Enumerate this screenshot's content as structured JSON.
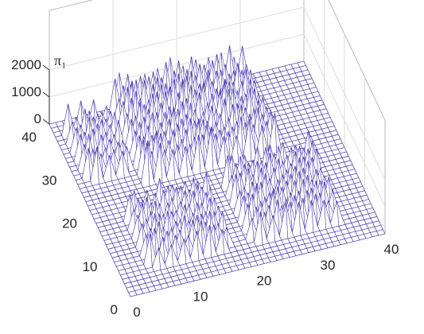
{
  "chart_data": {
    "type": "surface",
    "title": "",
    "zlabel": "π₁",
    "x_ticks": [
      "0",
      "10",
      "20",
      "30",
      "40"
    ],
    "y_ticks": [
      "0",
      "10",
      "20",
      "30",
      "40"
    ],
    "z_ticks": [
      "0",
      "1000",
      "2000"
    ],
    "xlim": [
      0,
      40
    ],
    "ylim": [
      0,
      40
    ],
    "zlim": [
      0,
      2000
    ],
    "grid": true,
    "mesh_color": "#3a2fa8",
    "peak_color": "#f5e84a",
    "face_color": "#ffffff",
    "regions": [
      {
        "x": [
          2,
          8
        ],
        "y": [
          26,
          37
        ],
        "peak_z": 1200
      },
      {
        "x": [
          10,
          30
        ],
        "y": [
          23,
          40
        ],
        "peak_z": 1450
      },
      {
        "x": [
          5,
          17
        ],
        "y": [
          5,
          17
        ],
        "peak_z": 1100
      },
      {
        "x": [
          21,
          34
        ],
        "y": [
          5,
          19
        ],
        "peak_z": 1200
      }
    ]
  }
}
